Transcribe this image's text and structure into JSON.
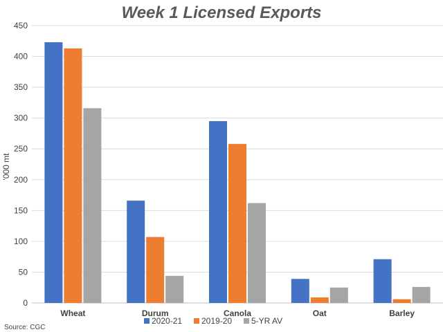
{
  "chart_data": {
    "type": "bar",
    "title": "Week 1 Licensed Exports",
    "ylabel": "'000 mt",
    "xlabel": "",
    "ylim": [
      0,
      450
    ],
    "yticks": [
      0,
      50,
      100,
      150,
      200,
      250,
      300,
      350,
      400,
      450
    ],
    "grid": true,
    "legend_position": "bottom",
    "categories": [
      "Wheat",
      "Durum",
      "Canola",
      "Oat",
      "Barley"
    ],
    "series": [
      {
        "name": "2020-21",
        "color": "#4472c4",
        "values": [
          423,
          166,
          295,
          39,
          71
        ]
      },
      {
        "name": "2019-20",
        "color": "#ed7d31",
        "values": [
          413,
          107,
          258,
          9,
          6
        ]
      },
      {
        "name": "5-YR AV",
        "color": "#a5a5a5",
        "values": [
          316,
          44,
          162,
          25,
          26
        ]
      }
    ],
    "source": "Source: CGC"
  }
}
